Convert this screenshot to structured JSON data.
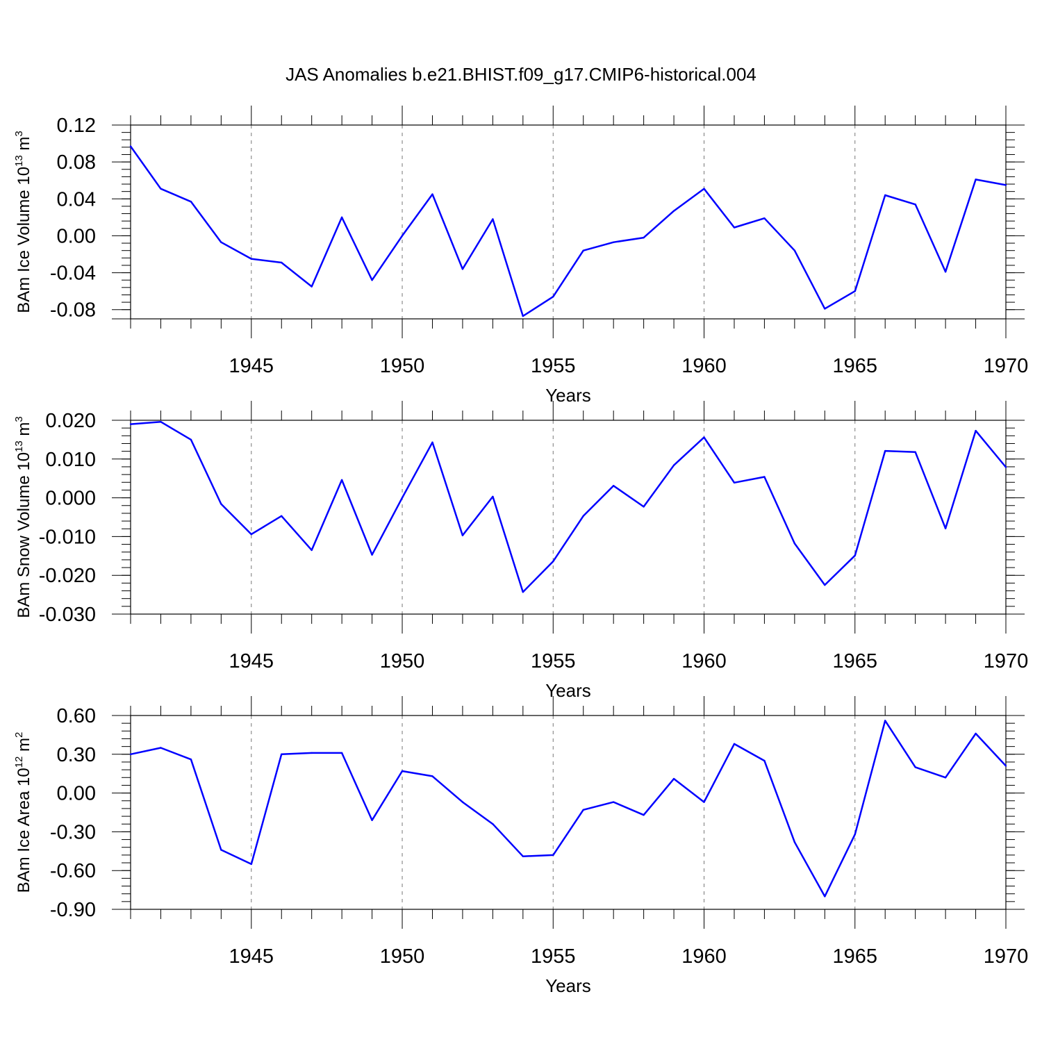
{
  "title": "JAS Anomalies b.e21.BHIST.f09_g17.CMIP6-historical.004",
  "chart_data": [
    {
      "type": "line",
      "ylabel_prefix": "BAm Ice Volume 10",
      "ylabel_exp": "13",
      "ylabel_unit": " m",
      "ylabel_unit_exp": "3",
      "xlabel": "Years",
      "xlim": [
        1941,
        1970
      ],
      "ylim": [
        -0.09,
        0.12
      ],
      "yticks": [
        0.12,
        0.08,
        0.04,
        0.0,
        -0.04,
        -0.08
      ],
      "ytick_labels": [
        "0.12",
        "0.08",
        "0.04",
        "0.00",
        "-0.04",
        "-0.08"
      ],
      "yminor_step": 0.008,
      "xticks": [
        1945,
        1950,
        1955,
        1960,
        1965,
        1970
      ],
      "xtick_labels": [
        "1945",
        "1950",
        "1955",
        "1960",
        "1965",
        "1970"
      ],
      "x": [
        1941,
        1942,
        1943,
        1944,
        1945,
        1946,
        1947,
        1948,
        1949,
        1950,
        1951,
        1952,
        1953,
        1954,
        1955,
        1956,
        1957,
        1958,
        1959,
        1960,
        1961,
        1962,
        1963,
        1964,
        1965,
        1966,
        1967,
        1968,
        1969,
        1970
      ],
      "values": [
        0.097,
        0.051,
        0.037,
        -0.007,
        -0.025,
        -0.029,
        -0.055,
        0.02,
        -0.048,
        0.0,
        0.045,
        -0.036,
        0.018,
        -0.087,
        -0.066,
        -0.016,
        -0.007,
        -0.002,
        0.027,
        0.051,
        0.009,
        0.019,
        -0.016,
        -0.079,
        -0.06,
        0.044,
        0.034,
        -0.039,
        0.061,
        0.055
      ]
    },
    {
      "type": "line",
      "ylabel_prefix": "BAm Snow Volume 10",
      "ylabel_exp": "13",
      "ylabel_unit": " m",
      "ylabel_unit_exp": "3",
      "xlabel": "Years",
      "xlim": [
        1941,
        1970
      ],
      "ylim": [
        -0.03,
        0.02
      ],
      "yticks": [
        0.02,
        0.01,
        0.0,
        -0.01,
        -0.02,
        -0.03
      ],
      "ytick_labels": [
        "0.020",
        "0.010",
        "0.000",
        "-0.010",
        "-0.020",
        "-0.030"
      ],
      "yminor_step": 0.002,
      "xticks": [
        1945,
        1950,
        1955,
        1960,
        1965,
        1970
      ],
      "xtick_labels": [
        "1945",
        "1950",
        "1955",
        "1960",
        "1965",
        "1970"
      ],
      "x": [
        1941,
        1942,
        1943,
        1944,
        1945,
        1946,
        1947,
        1948,
        1949,
        1950,
        1951,
        1952,
        1953,
        1954,
        1955,
        1956,
        1957,
        1958,
        1959,
        1960,
        1961,
        1962,
        1963,
        1964,
        1965,
        1966,
        1967,
        1968,
        1969,
        1970
      ],
      "values": [
        0.019,
        0.0196,
        0.015,
        -0.0016,
        -0.0094,
        -0.0047,
        -0.0135,
        0.0046,
        -0.0147,
        0.0,
        0.0143,
        -0.0097,
        0.0003,
        -0.0243,
        -0.0164,
        -0.0047,
        0.0031,
        -0.0023,
        0.0084,
        0.0156,
        0.0039,
        0.0054,
        -0.0118,
        -0.0225,
        -0.0149,
        0.0121,
        0.0118,
        -0.0079,
        0.0173,
        0.0079
      ]
    },
    {
      "type": "line",
      "ylabel_prefix": "BAm Ice Area 10",
      "ylabel_exp": "12",
      "ylabel_unit": " m",
      "ylabel_unit_exp": "2",
      "xlabel": "Years",
      "xlim": [
        1941,
        1970
      ],
      "ylim": [
        -0.9,
        0.6
      ],
      "yticks": [
        0.6,
        0.3,
        0.0,
        -0.3,
        -0.6,
        -0.9
      ],
      "ytick_labels": [
        "0.60",
        "0.30",
        "0.00",
        "-0.30",
        "-0.60",
        "-0.90"
      ],
      "yminor_step": 0.06,
      "xticks": [
        1945,
        1950,
        1955,
        1960,
        1965,
        1970
      ],
      "xtick_labels": [
        "1945",
        "1950",
        "1955",
        "1960",
        "1965",
        "1970"
      ],
      "x": [
        1941,
        1942,
        1943,
        1944,
        1945,
        1946,
        1947,
        1948,
        1949,
        1950,
        1951,
        1952,
        1953,
        1954,
        1955,
        1956,
        1957,
        1958,
        1959,
        1960,
        1961,
        1962,
        1963,
        1964,
        1965,
        1966,
        1967,
        1968,
        1969,
        1970
      ],
      "values": [
        0.3,
        0.35,
        0.26,
        -0.44,
        -0.55,
        0.3,
        0.31,
        0.31,
        -0.21,
        0.17,
        0.13,
        -0.07,
        -0.24,
        -0.49,
        -0.48,
        -0.13,
        -0.07,
        -0.17,
        0.11,
        -0.07,
        0.38,
        0.25,
        -0.38,
        -0.8,
        -0.32,
        0.56,
        0.2,
        0.12,
        0.46,
        0.21
      ]
    }
  ]
}
